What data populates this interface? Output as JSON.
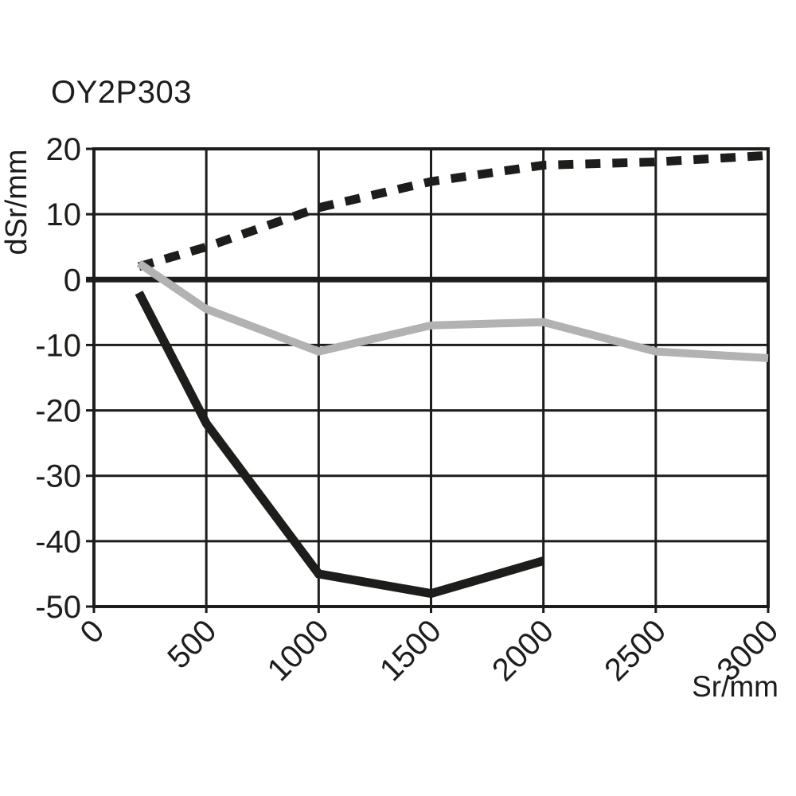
{
  "page": {
    "background": "#ffffff",
    "ink_color": "#1d1d1b"
  },
  "chart_data": {
    "type": "line",
    "title": "OY2P303",
    "xlabel": "Sr/mm",
    "ylabel": "dSr/mm",
    "xlim": [
      0,
      3000
    ],
    "ylim": [
      -50,
      20
    ],
    "xticks": [
      0,
      500,
      1000,
      1500,
      2000,
      2500,
      3000
    ],
    "yticks": [
      20,
      10,
      0,
      -10,
      -20,
      -30,
      -40,
      -50
    ],
    "grid": true,
    "legend_position": "none",
    "colors": {
      "ink": "#1d1d1b",
      "gray": "#b2b2b2"
    },
    "series": [
      {
        "name": "dashed-black-line",
        "style": "dashed",
        "color": "#1d1d1b",
        "width": 11,
        "x": [
          200,
          500,
          1000,
          1500,
          2000,
          2500,
          3000
        ],
        "y": [
          2,
          5,
          11,
          15,
          17.5,
          18,
          19
        ]
      },
      {
        "name": "solid-gray-line",
        "style": "solid",
        "color": "#b2b2b2",
        "width": 10,
        "x": [
          200,
          500,
          1000,
          1500,
          2000,
          2500,
          3000
        ],
        "y": [
          2.5,
          -4.5,
          -11,
          -7,
          -6.5,
          -11,
          -12
        ]
      },
      {
        "name": "solid-black-line",
        "style": "solid",
        "color": "#1d1d1b",
        "width": 11,
        "x": [
          200,
          500,
          1000,
          1500,
          2000
        ],
        "y": [
          -2,
          -22,
          -45,
          -48,
          -43
        ]
      }
    ]
  }
}
